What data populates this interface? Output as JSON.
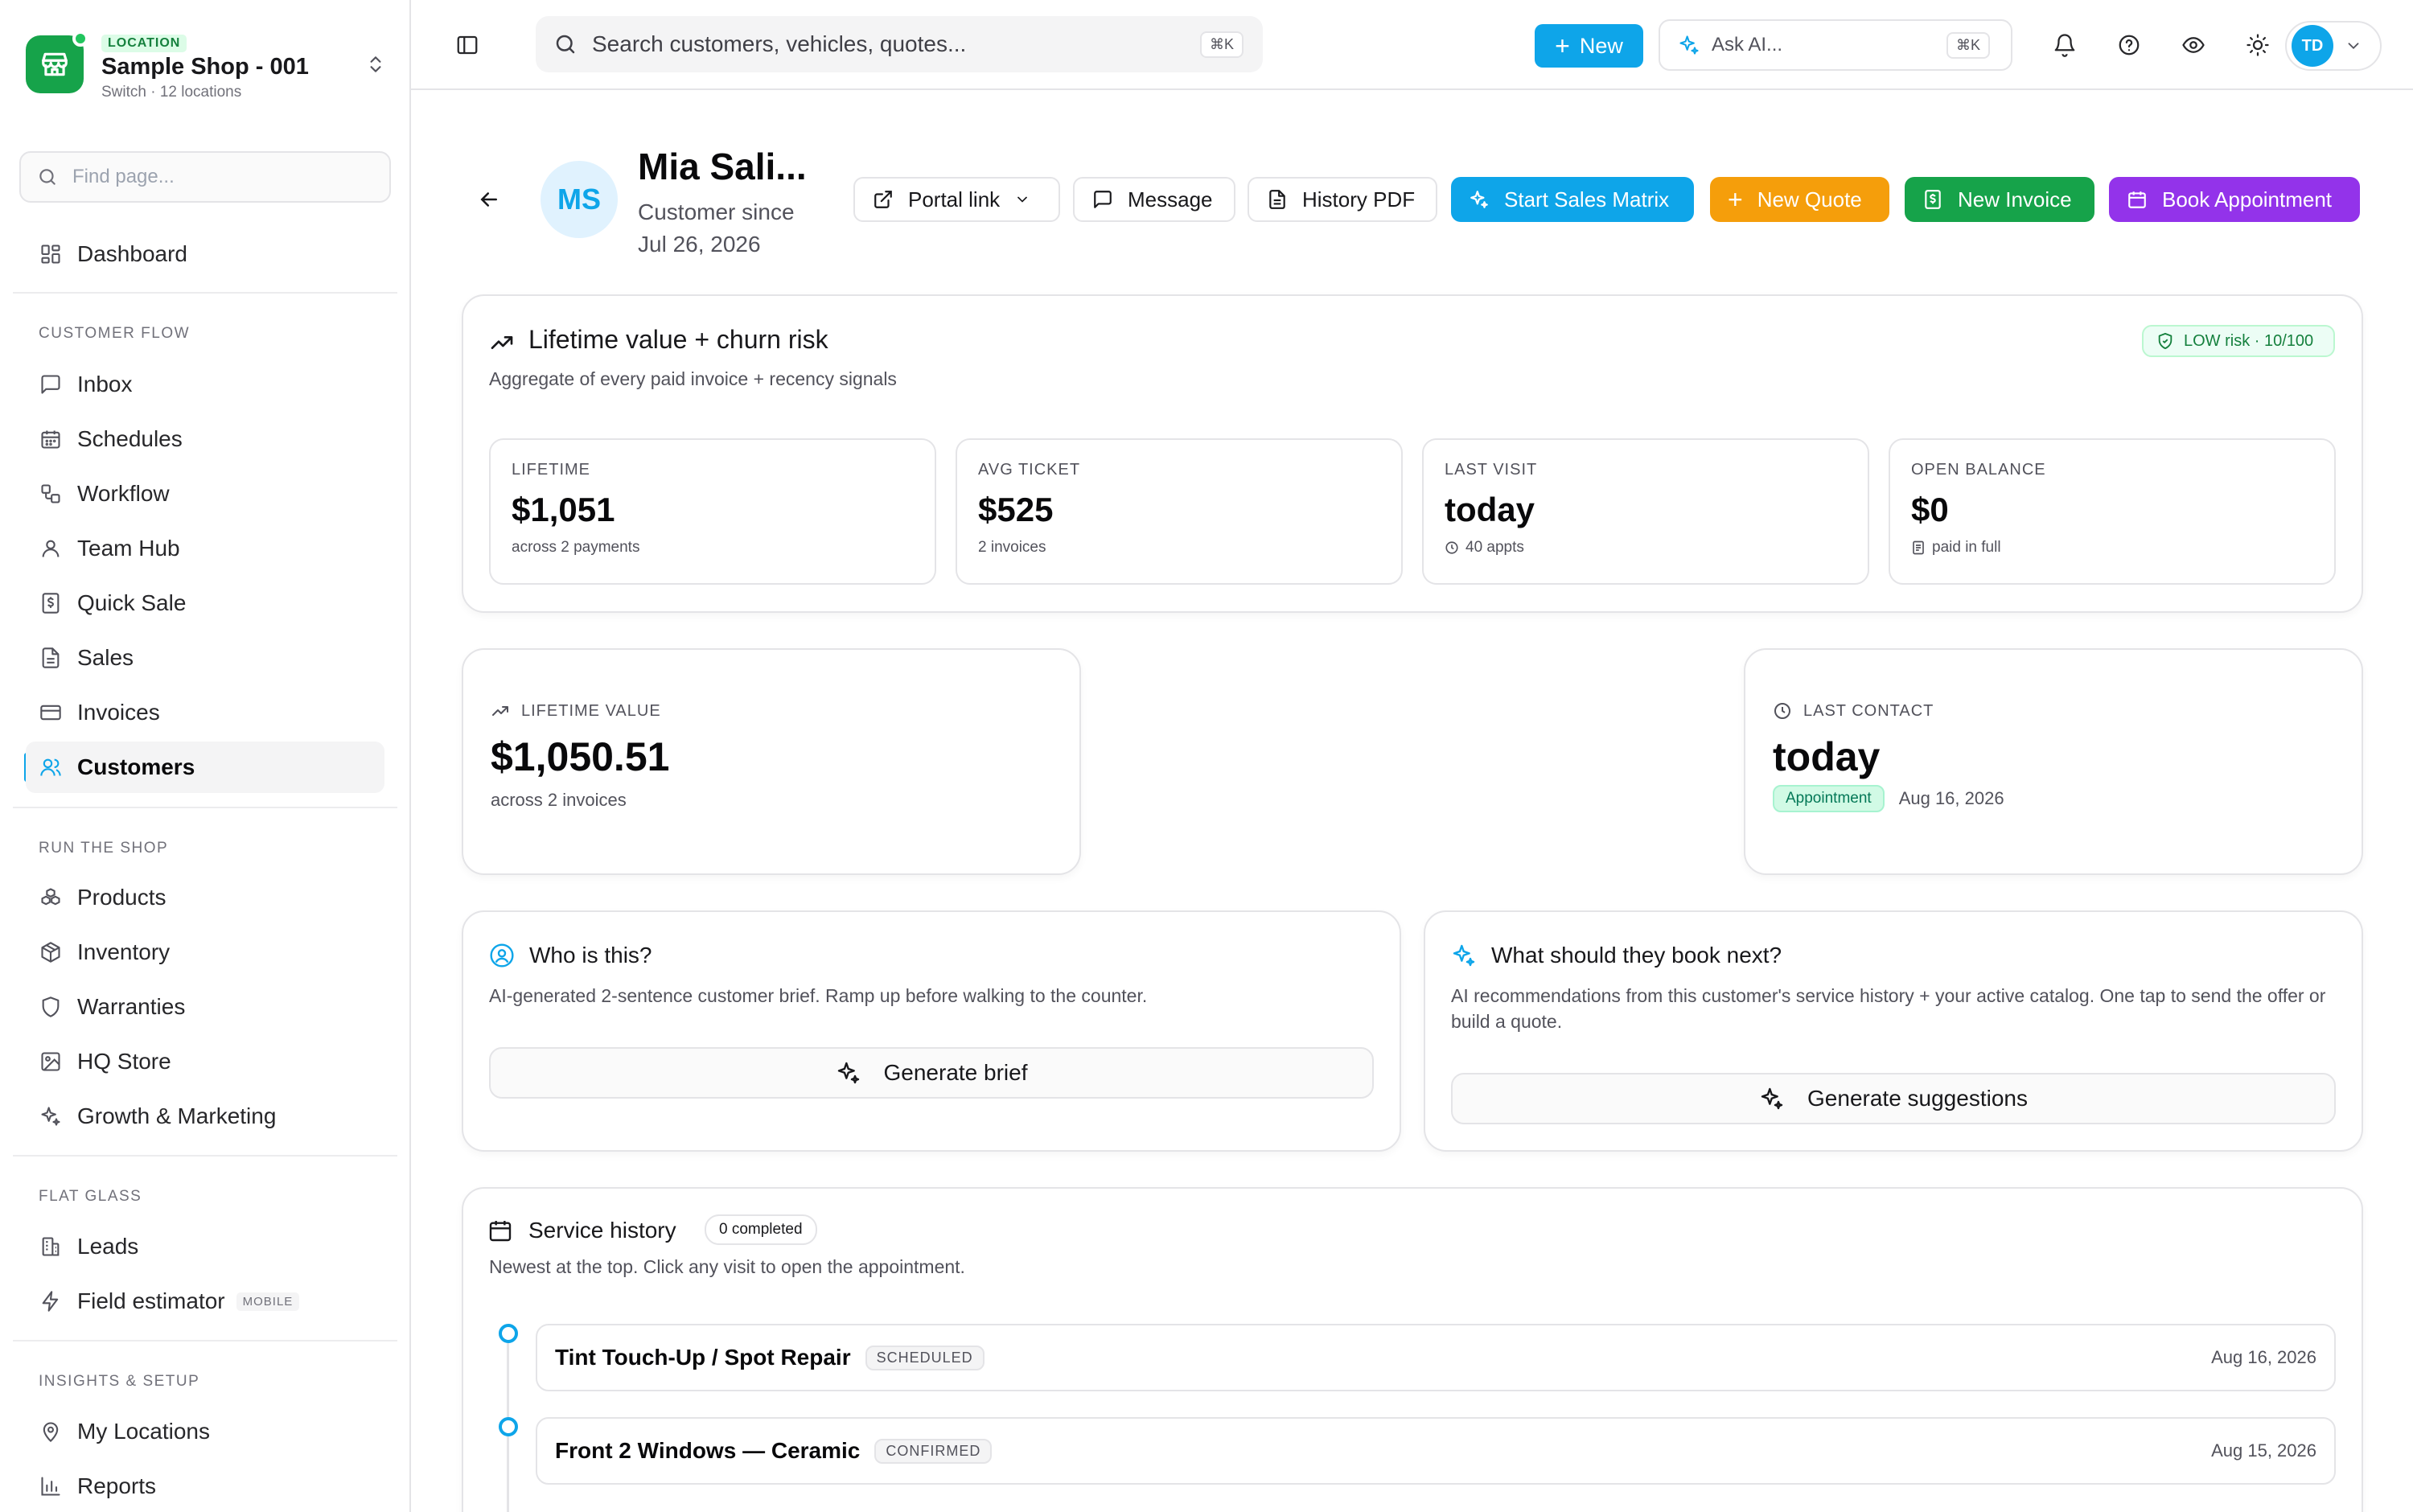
{
  "location": {
    "tag": "LOCATION",
    "name": "Sample Shop - 001",
    "sub": "Switch · 12 locations"
  },
  "sidebar": {
    "search_placeholder": "Find page...",
    "dashboard": "Dashboard",
    "sections": {
      "customer_flow": "CUSTOMER FLOW",
      "run_the_shop": "RUN THE SHOP",
      "flat_glass": "FLAT GLASS",
      "insights": "INSIGHTS & SETUP"
    },
    "customer_flow": [
      "Inbox",
      "Schedules",
      "Workflow",
      "Team Hub",
      "Quick Sale",
      "Sales",
      "Invoices",
      "Customers"
    ],
    "run_the_shop": [
      "Products",
      "Inventory",
      "Warranties",
      "HQ Store",
      "Growth & Marketing"
    ],
    "flat_glass": [
      "Leads",
      "Field estimator"
    ],
    "mobile_badge": "MOBILE",
    "insights": [
      "My Locations",
      "Reports"
    ],
    "active_item": "Customers"
  },
  "topbar": {
    "search_placeholder": "Search customers, vehicles, quotes...",
    "search_kbd": "⌘K",
    "new_label": "New",
    "ask_label": "Ask AI...",
    "ask_kbd": "⌘K",
    "avatar_initials": "TD"
  },
  "customer": {
    "initials": "MS",
    "name": "Mia Sali...",
    "since": "Customer since Jul 26, 2026"
  },
  "actions": {
    "portal_link": "Portal link",
    "message": "Message",
    "history_pdf": "History PDF",
    "start_sales_matrix": "Start Sales Matrix",
    "new_quote": "New Quote",
    "new_invoice": "New Invoice",
    "book_appointment": "Book Appointment"
  },
  "ltv_card": {
    "title": "Lifetime value + churn risk",
    "subtitle": "Aggregate of every paid invoice + recency signals",
    "risk": "LOW risk · 10/100",
    "stats": [
      {
        "label": "LIFETIME",
        "value": "$1,051",
        "sub": "across 2 payments"
      },
      {
        "label": "AVG TICKET",
        "value": "$525",
        "sub": "2 invoices"
      },
      {
        "label": "LAST VISIT",
        "value": "today",
        "sub": "40 appts"
      },
      {
        "label": "OPEN BALANCE",
        "value": "$0",
        "sub": "paid in full"
      }
    ]
  },
  "lifetime_value": {
    "label": "LIFETIME VALUE",
    "value": "$1,050.51",
    "sub": "across 2 invoices"
  },
  "last_contact": {
    "label": "LAST CONTACT",
    "value": "today",
    "pill": "Appointment",
    "date": "Aug 16, 2026"
  },
  "who": {
    "title": "Who is this?",
    "desc": "AI-generated 2-sentence customer brief. Ramp up before walking to the counter.",
    "button": "Generate brief"
  },
  "next": {
    "title": "What should they book next?",
    "desc": "AI recommendations from this customer's service history + your active catalog. One tap to send the offer or build a quote.",
    "button": "Generate suggestions"
  },
  "service_history": {
    "title": "Service history",
    "badge": "0 completed",
    "subtitle": "Newest at the top. Click any visit to open the appointment.",
    "visits": [
      {
        "title": "Tint Touch-Up / Spot Repair",
        "status": "SCHEDULED",
        "date": "Aug 16, 2026"
      },
      {
        "title": "Front 2 Windows — Ceramic",
        "status": "CONFIRMED",
        "date": "Aug 15, 2026"
      }
    ]
  },
  "colors": {
    "accent": "#0ea5e9",
    "quote": "#f59e0b",
    "invoice": "#16a34a",
    "appointment": "#9333ea",
    "location_logo": "#16a34a"
  }
}
